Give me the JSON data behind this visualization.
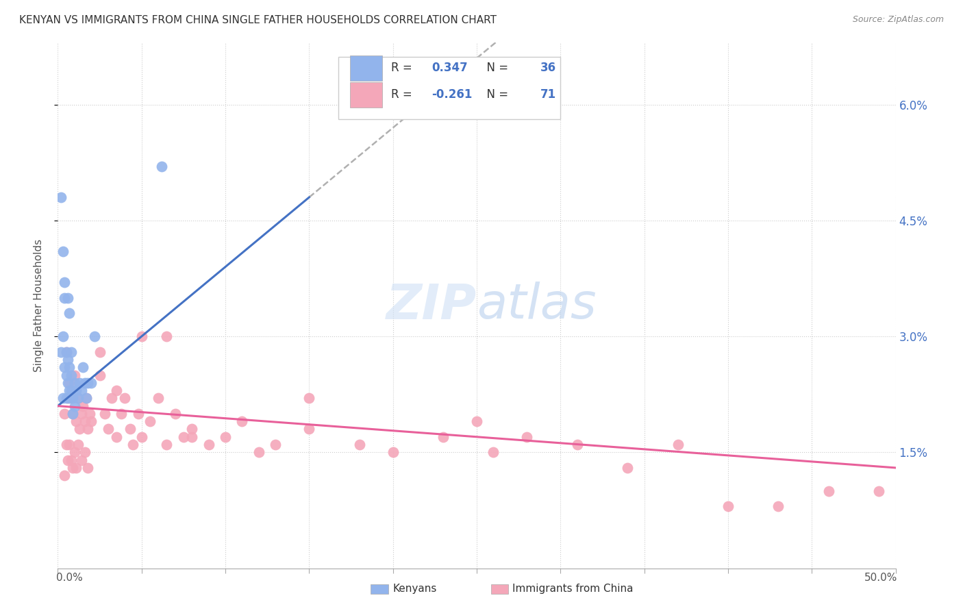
{
  "title": "KENYAN VS IMMIGRANTS FROM CHINA SINGLE FATHER HOUSEHOLDS CORRELATION CHART",
  "source": "Source: ZipAtlas.com",
  "ylabel": "Single Father Households",
  "ytick_labels": [
    "1.5%",
    "3.0%",
    "4.5%",
    "6.0%"
  ],
  "ytick_values": [
    0.015,
    0.03,
    0.045,
    0.06
  ],
  "xlim": [
    0.0,
    0.5
  ],
  "ylim": [
    0.0,
    0.068
  ],
  "kenyan_R": 0.347,
  "kenyan_N": 36,
  "china_R": -0.261,
  "china_N": 71,
  "kenyan_color": "#92b4ec",
  "china_color": "#f4a7b9",
  "kenyan_line_color": "#4472c4",
  "china_line_color": "#e8609a",
  "trend_line_start_x": 0.0,
  "trend_line_end_x": 0.5,
  "kenyan_line_y0": 0.021,
  "kenyan_line_y1": 0.048,
  "kenyan_line_solid_end_x": 0.15,
  "china_line_y0": 0.021,
  "china_line_y1": 0.014,
  "watermark_text": "ZIPatlas",
  "watermark_zip_color": "#d0e4f7",
  "watermark_atlas_color": "#b0c8e8"
}
